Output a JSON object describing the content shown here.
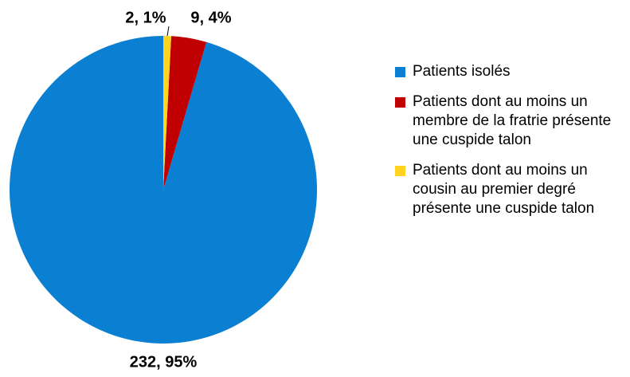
{
  "chart_data": {
    "type": "pie",
    "categories": [
      "Patients isolés",
      "Patients dont au moins un membre de la fratrie présente une cuspide talon",
      "Patients dont au moins un cousin au premier degré présente une cuspide talon"
    ],
    "values": [
      232,
      9,
      2
    ],
    "value_labels": [
      "232, 95%",
      "9, 4%",
      "2, 1%"
    ],
    "colors": [
      "#0b7fd1",
      "#c00000",
      "#ffd320"
    ]
  }
}
